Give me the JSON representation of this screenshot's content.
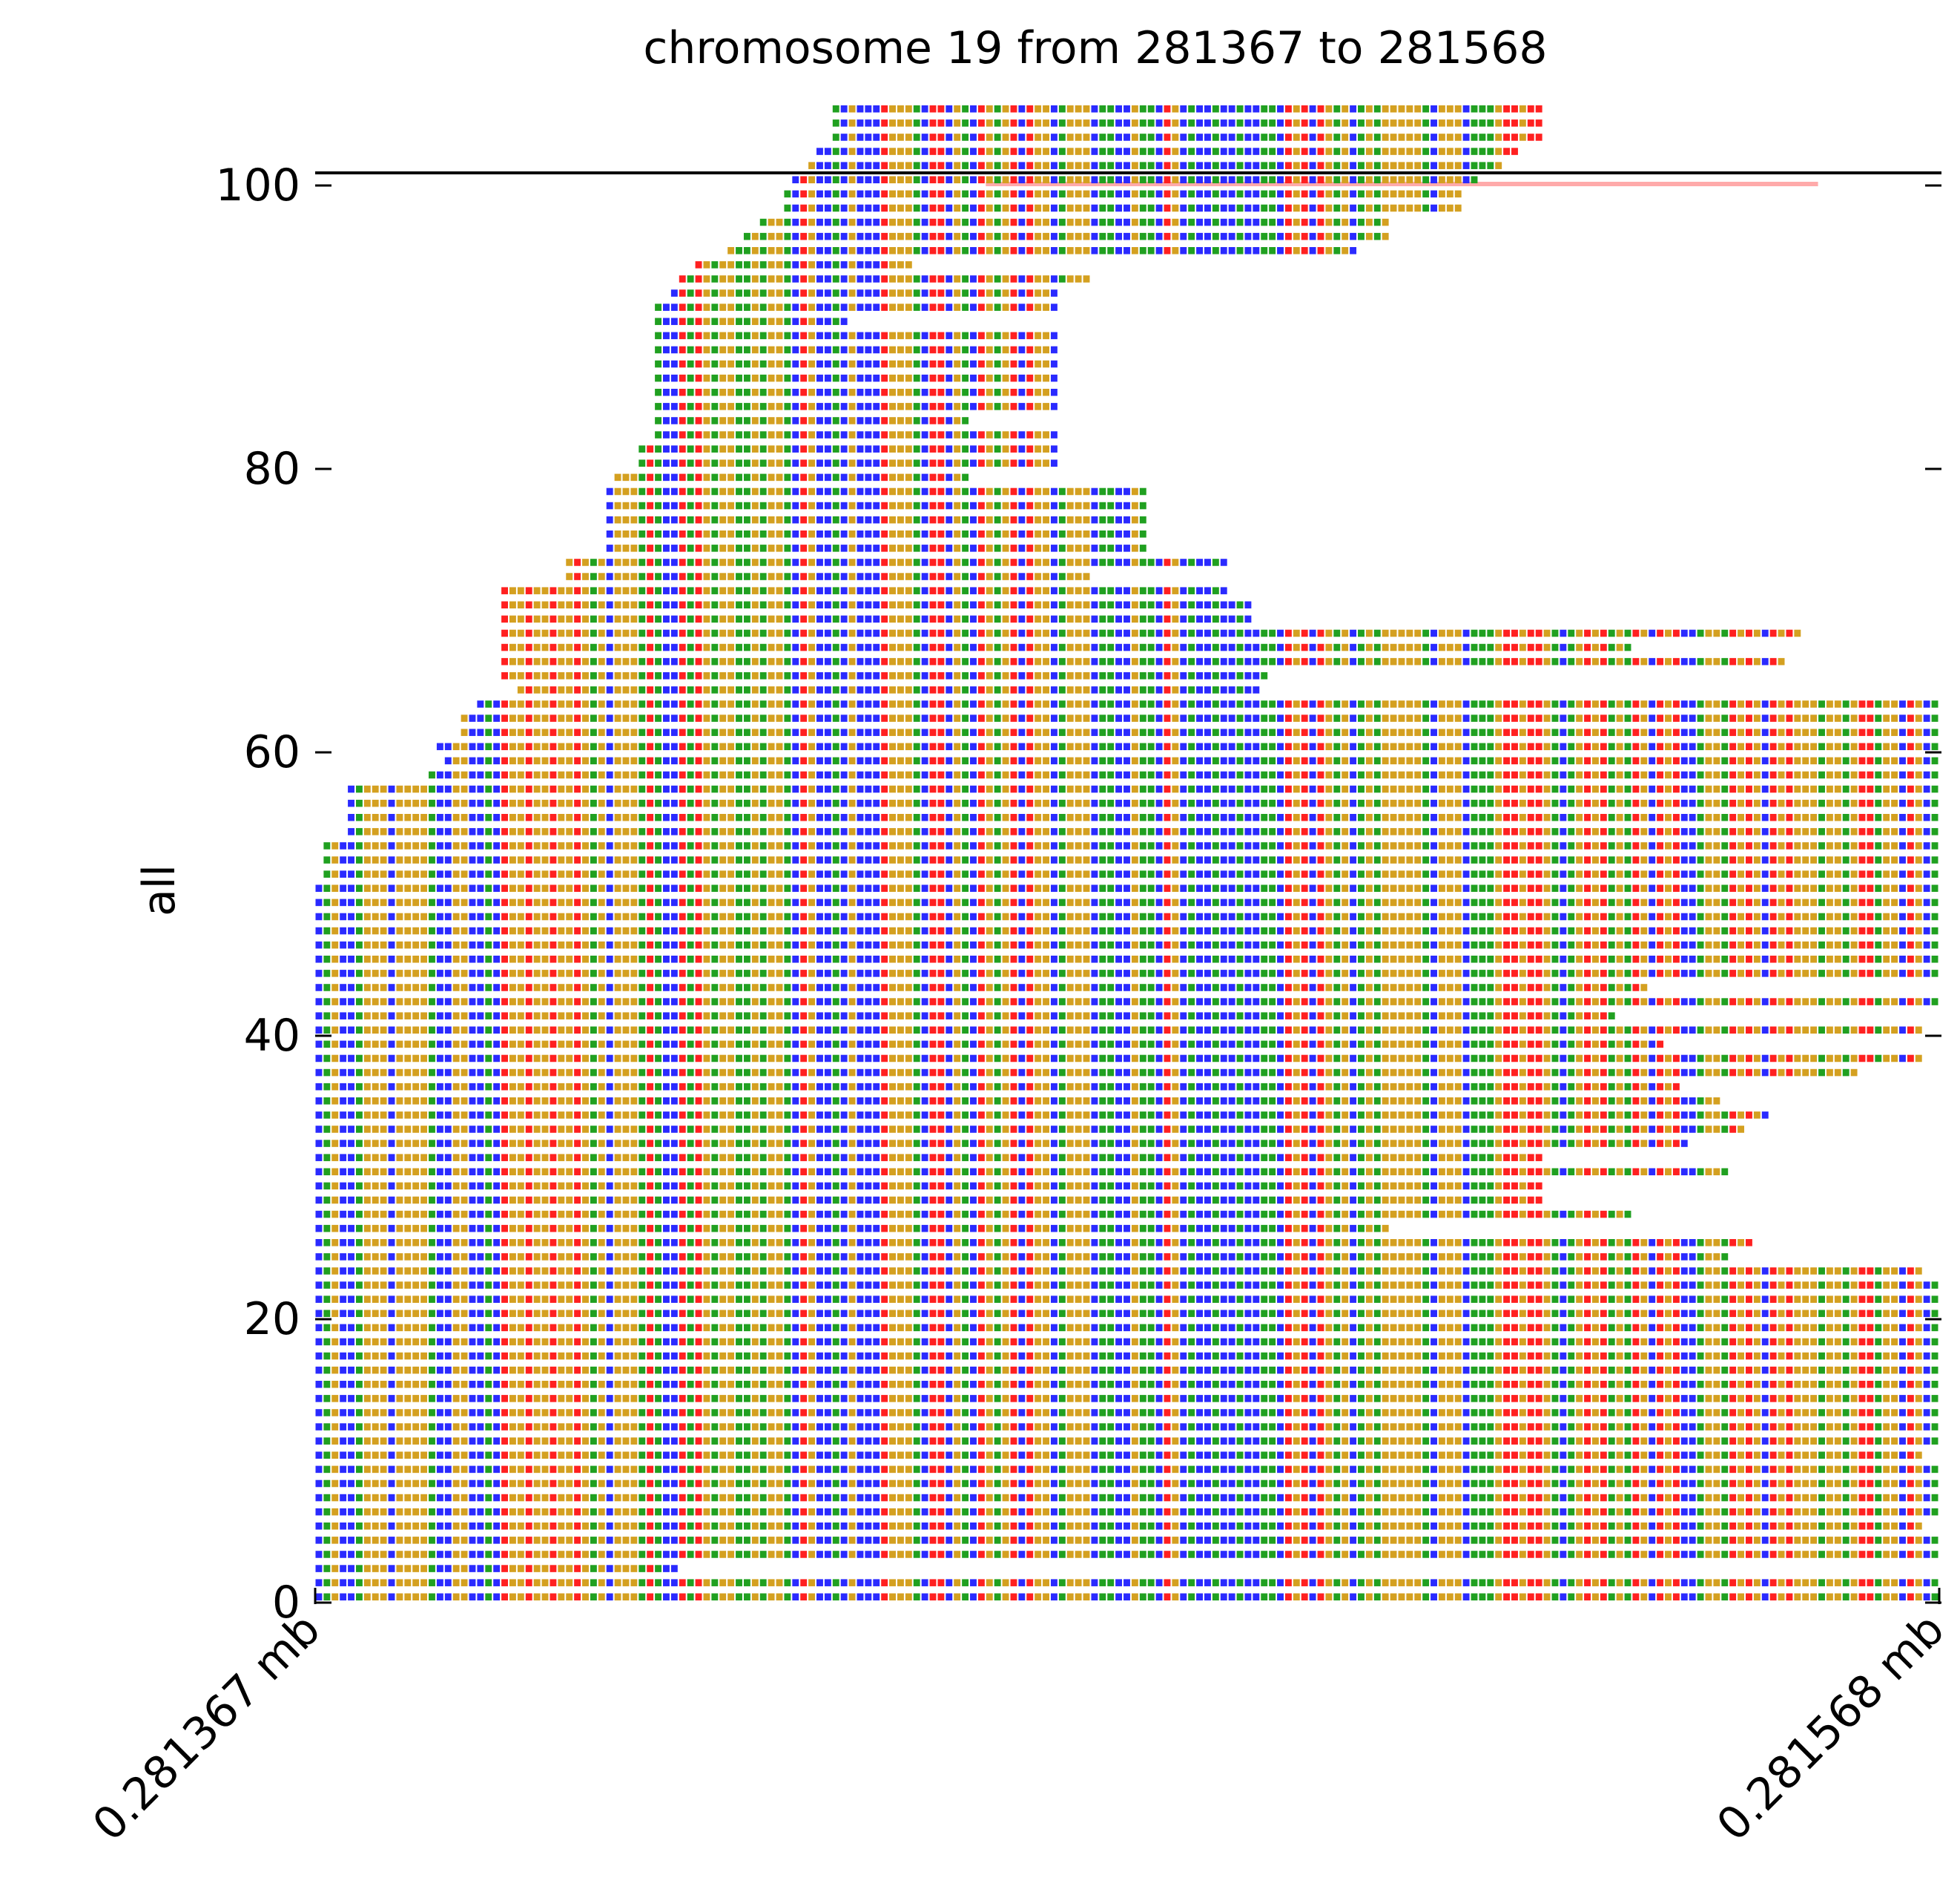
{
  "chart_data": {
    "type": "pileup",
    "title": "chromosome 19 from 281367 to 281568",
    "ylabel": "all",
    "xlabel": "",
    "ylim": [
      0,
      100
    ],
    "y_ticks": [
      0,
      20,
      40,
      60,
      80,
      100
    ],
    "x_tick_labels": [
      "0.281367 mb",
      "0.281568 mb"
    ],
    "xlim": [
      281367,
      281568
    ],
    "reference_sequence": "CTGCCTGGGCGGGGTCCGGCCTCAGGAGGAGGAGTGCGGGTATCCATAGTGGTTGTGGTCAGCCTCGCCCAGGGTCAACGTCAGTGACAGGCTGGGCTTCCGTTCAGCTCCTCCTCCTTCAGACAGTGCTGTGGGGGTCGGGCTTTGAAGAAGTCTGAGATGTAGCAGACCTGGTAGAGCAGAGGGTGGTGAATGGCAG",
    "coverage_bar": {
      "start": 281450,
      "end": 281553,
      "color": "#ffaaaa"
    },
    "base_colors": {
      "A": "#ff2020",
      "C": "#2a2aff",
      "G": "#d4a020",
      "T": "#20a020"
    },
    "reads": [
      {
        "start": 281367,
        "end": 281568
      },
      {
        "start": 281367,
        "end": 281568
      },
      {
        "start": 281367,
        "end": 281412
      },
      {
        "start": 281367,
        "end": 281568
      },
      {
        "start": 281367,
        "end": 281568
      },
      {
        "start": 281367,
        "end": 281566
      },
      {
        "start": 281367,
        "end": 281568
      },
      {
        "start": 281367,
        "end": 281568
      },
      {
        "start": 281367,
        "end": 281568
      },
      {
        "start": 281367,
        "end": 281568
      },
      {
        "start": 281367,
        "end": 281566
      },
      {
        "start": 281367,
        "end": 281568
      },
      {
        "start": 281367,
        "end": 281568
      },
      {
        "start": 281367,
        "end": 281568
      },
      {
        "start": 281367,
        "end": 281568
      },
      {
        "start": 281367,
        "end": 281568
      },
      {
        "start": 281367,
        "end": 281568
      },
      {
        "start": 281367,
        "end": 281568
      },
      {
        "start": 281367,
        "end": 281568
      },
      {
        "start": 281367,
        "end": 281568
      },
      {
        "start": 281367,
        "end": 281568
      },
      {
        "start": 281367,
        "end": 281568
      },
      {
        "start": 281367,
        "end": 281568
      },
      {
        "start": 281367,
        "end": 281566
      },
      {
        "start": 281367,
        "end": 281542
      },
      {
        "start": 281367,
        "end": 281545
      },
      {
        "start": 281367,
        "end": 281500
      },
      {
        "start": 281367,
        "end": 281530
      },
      {
        "start": 281367,
        "end": 281519
      },
      {
        "start": 281367,
        "end": 281519
      },
      {
        "start": 281367,
        "end": 281542
      },
      {
        "start": 281367,
        "end": 281519
      },
      {
        "start": 281367,
        "end": 281537
      },
      {
        "start": 281367,
        "end": 281544
      },
      {
        "start": 281367,
        "end": 281547
      },
      {
        "start": 281367,
        "end": 281541
      },
      {
        "start": 281367,
        "end": 281536
      },
      {
        "start": 281367,
        "end": 281558
      },
      {
        "start": 281367,
        "end": 281566
      },
      {
        "start": 281367,
        "end": 281534
      },
      {
        "start": 281367,
        "end": 281566
      },
      {
        "start": 281367,
        "end": 281528
      },
      {
        "start": 281367,
        "end": 281568
      },
      {
        "start": 281367,
        "end": 281532
      },
      {
        "start": 281367,
        "end": 281568
      },
      {
        "start": 281367,
        "end": 281568
      },
      {
        "start": 281367,
        "end": 281568
      },
      {
        "start": 281367,
        "end": 281568
      },
      {
        "start": 281367,
        "end": 281568
      },
      {
        "start": 281367,
        "end": 281568
      },
      {
        "start": 281367,
        "end": 281568
      },
      {
        "start": 281368,
        "end": 281568
      },
      {
        "start": 281368,
        "end": 281568
      },
      {
        "start": 281368,
        "end": 281568
      },
      {
        "start": 281371,
        "end": 281568
      },
      {
        "start": 281371,
        "end": 281568
      },
      {
        "start": 281371,
        "end": 281568
      },
      {
        "start": 281371,
        "end": 281568
      },
      {
        "start": 281381,
        "end": 281568
      },
      {
        "start": 281383,
        "end": 281568
      },
      {
        "start": 281382,
        "end": 281568
      },
      {
        "start": 281385,
        "end": 281568
      },
      {
        "start": 281385,
        "end": 281568
      },
      {
        "start": 281387,
        "end": 281568
      },
      {
        "start": 281392,
        "end": 281484
      },
      {
        "start": 281390,
        "end": 281485
      },
      {
        "start": 281390,
        "end": 281549
      },
      {
        "start": 281390,
        "end": 281530
      },
      {
        "start": 281390,
        "end": 281551
      },
      {
        "start": 281390,
        "end": 281483
      },
      {
        "start": 281390,
        "end": 281483
      },
      {
        "start": 281390,
        "end": 281480
      },
      {
        "start": 281398,
        "end": 281463
      },
      {
        "start": 281398,
        "end": 281480
      },
      {
        "start": 281403,
        "end": 281470
      },
      {
        "start": 281403,
        "end": 281470
      },
      {
        "start": 281403,
        "end": 281470
      },
      {
        "start": 281403,
        "end": 281470
      },
      {
        "start": 281403,
        "end": 281470
      },
      {
        "start": 281404,
        "end": 281448
      },
      {
        "start": 281407,
        "end": 281459
      },
      {
        "start": 281407,
        "end": 281459
      },
      {
        "start": 281409,
        "end": 281459
      },
      {
        "start": 281409,
        "end": 281448
      },
      {
        "start": 281409,
        "end": 281459
      },
      {
        "start": 281409,
        "end": 281459
      },
      {
        "start": 281409,
        "end": 281459
      },
      {
        "start": 281409,
        "end": 281459
      },
      {
        "start": 281409,
        "end": 281459
      },
      {
        "start": 281409,
        "end": 281459
      },
      {
        "start": 281409,
        "end": 281433
      },
      {
        "start": 281409,
        "end": 281459
      },
      {
        "start": 281411,
        "end": 281459
      },
      {
        "start": 281412,
        "end": 281463
      },
      {
        "start": 281414,
        "end": 281441
      },
      {
        "start": 281418,
        "end": 281496
      },
      {
        "start": 281420,
        "end": 281500
      },
      {
        "start": 281422,
        "end": 281500
      },
      {
        "start": 281425,
        "end": 281509
      },
      {
        "start": 281425,
        "end": 281509
      },
      {
        "start": 281426,
        "end": 281511
      },
      {
        "start": 281428,
        "end": 281514
      },
      {
        "start": 281429,
        "end": 281516
      },
      {
        "start": 281431,
        "end": 281519
      },
      {
        "start": 281431,
        "end": 281519
      },
      {
        "start": 281431,
        "end": 281519
      }
    ]
  }
}
